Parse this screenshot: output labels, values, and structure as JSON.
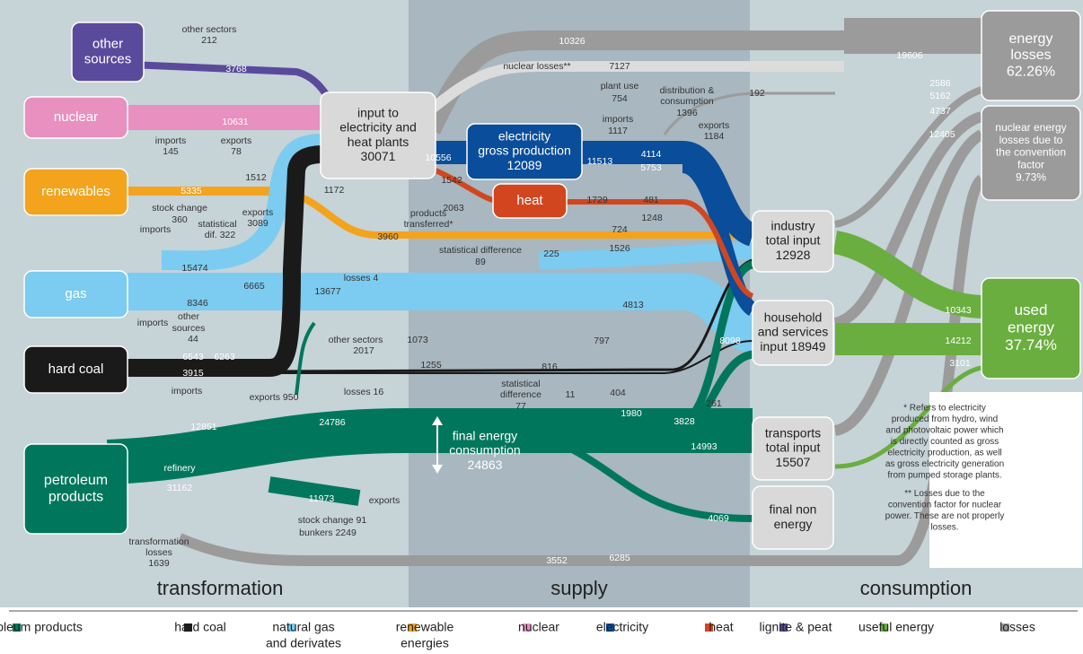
{
  "sections": [
    "transformation",
    "supply",
    "consumption"
  ],
  "nodes": [
    {
      "lines": [
        "other",
        "sources"
      ]
    },
    {
      "lines": [
        "nuclear"
      ]
    },
    {
      "lines": [
        "renewables"
      ]
    },
    {
      "lines": [
        "gas"
      ]
    },
    {
      "lines": [
        "hard coal"
      ]
    },
    {
      "lines": [
        "petroleum",
        "products"
      ]
    },
    {
      "lines": [
        "input to",
        "electricity and",
        "heat plants",
        "30071"
      ]
    },
    {
      "lines": [
        "electricity",
        "gross production",
        "12089"
      ]
    },
    {
      "lines": [
        "heat"
      ]
    },
    {
      "lines": [
        "industry",
        "total input",
        "12928"
      ]
    },
    {
      "lines": [
        "household",
        "and services",
        "input 18949"
      ]
    },
    {
      "lines": [
        "transports",
        "total input",
        "15507"
      ]
    },
    {
      "lines": [
        "final non",
        "energy"
      ]
    },
    {
      "lines": [
        "energy",
        "losses",
        "62.26%"
      ]
    },
    {
      "lines": [
        "nuclear energy",
        "losses due to",
        "the convention",
        "factor",
        "9.73%"
      ]
    },
    {
      "lines": [
        "used",
        "energy",
        "37.74%"
      ]
    },
    {
      "lines": [
        "final energy",
        "consumption",
        "24863"
      ]
    }
  ],
  "flow_labels": [
    "other sectors",
    212,
    3768,
    10631,
    "imports",
    145,
    "exports",
    78,
    1512,
    5335,
    1172,
    "stock change",
    360,
    "statistical",
    "dif. 322",
    "exports",
    3089,
    "imports",
    15474,
    6665,
    8346,
    13677,
    "losses 4",
    "imports",
    "other",
    "sources",
    44,
    6543,
    6263,
    3915,
    "other sectors",
    2017,
    1255,
    "exports 950",
    "losses 16",
    "imports",
    12851,
    24786,
    "refinery",
    31162,
    11973,
    "exports",
    "stock change 91",
    "bunkers 2249",
    "transformation",
    "losses",
    1639,
    10326,
    "nuclear losses**",
    7127,
    "plant use",
    754,
    "distribution &",
    "consumption",
    1396,
    192,
    "imports",
    1117,
    "exports",
    1184,
    10556,
    11513,
    4114,
    5753,
    1542,
    2063,
    1729,
    481,
    1248,
    "products",
    "transferred*",
    3960,
    724,
    "statistical difference",
    89,
    225,
    1526,
    4813,
    1073,
    797,
    816,
    11,
    "statistical",
    "difference",
    77,
    404,
    1980,
    261,
    3828,
    8098,
    14993,
    4069,
    3552,
    6285,
    19606,
    2586,
    5162,
    4737,
    12405,
    10343,
    14212,
    3101
  ],
  "notes": [
    {
      "lines": [
        "* Refers to electricity",
        "produced from hydro, wind",
        "and photovoltaic power which",
        "is directly counted as gross",
        "electricity production, as well",
        "as gross electricity generation",
        "from pumped storage plants."
      ]
    },
    {
      "lines": [
        "** Losses due to the",
        "convention factor for nuclear",
        "power. These are not properly",
        "losses."
      ]
    }
  ],
  "legend": [
    {
      "lines": [
        "petroleum products"
      ],
      "color": "#00775c"
    },
    {
      "lines": [
        "hard coal"
      ],
      "color": "#1a1a1a"
    },
    {
      "lines": [
        "natural gas",
        "and derivates"
      ],
      "color": "#7ccbf0"
    },
    {
      "lines": [
        "renewable",
        "energies"
      ],
      "color": "#f4a31d"
    },
    {
      "lines": [
        "nuclear"
      ],
      "color": "#e890bf"
    },
    {
      "lines": [
        "electricity"
      ],
      "color": "#0a4d9a"
    },
    {
      "lines": [
        "heat"
      ],
      "color": "#d2461f"
    },
    {
      "lines": [
        "lignite & peat"
      ],
      "color": "#5a4a9c"
    },
    {
      "lines": [
        "useful energy"
      ],
      "color": "#6aae3f"
    },
    {
      "lines": [
        "losses"
      ],
      "color": "#9b9b9b"
    }
  ]
}
